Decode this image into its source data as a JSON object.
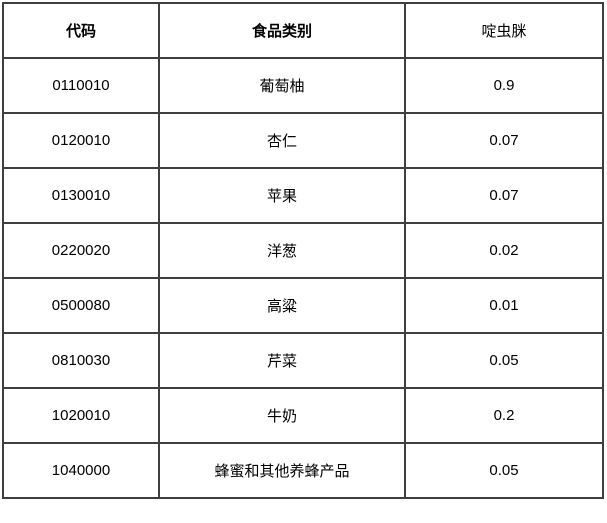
{
  "table": {
    "name": "pesticide-mrl-table",
    "columns": [
      {
        "label": "代码"
      },
      {
        "label": "食品类别"
      },
      {
        "label": "啶虫脒"
      }
    ],
    "rows": [
      {
        "code": "0110010",
        "category": "葡萄柚",
        "value": "0.9"
      },
      {
        "code": "0120010",
        "category": "杏仁",
        "value": "0.07"
      },
      {
        "code": "0130010",
        "category": "苹果",
        "value": "0.07"
      },
      {
        "code": "0220020",
        "category": "洋葱",
        "value": "0.02"
      },
      {
        "code": "0500080",
        "category": "高粱",
        "value": "0.01"
      },
      {
        "code": "0810030",
        "category": "芹菜",
        "value": "0.05"
      },
      {
        "code": "1020010",
        "category": "牛奶",
        "value": "0.2"
      },
      {
        "code": "1040000",
        "category": "蜂蜜和其他养蜂产品",
        "value": "0.05"
      }
    ],
    "colors": {
      "border": "#3f3f3f",
      "text": "#000000",
      "background": "#ffffff"
    }
  }
}
